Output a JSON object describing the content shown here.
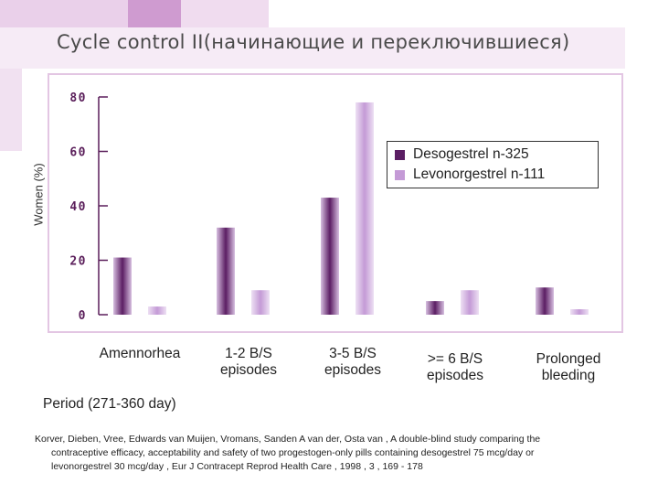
{
  "title": "Cycle control II(начинающие и переключившиеся)",
  "colors": {
    "desogestrel": "#5b1e63",
    "levonorgestrel": "#c49ad6",
    "axis_text": "#5a1e5a",
    "decor_pink": "#e7c6e6",
    "decor_purple": "#cf98cf"
  },
  "chart_data": {
    "type": "bar",
    "title": "Cycle control II(начинающие и переключившиеся)",
    "xlabel": "Period (271-360 day)",
    "ylabel": "Women (%)",
    "ylim": [
      0,
      80
    ],
    "yticks": [
      "0",
      "20",
      "40",
      "60",
      "80"
    ],
    "grid": false,
    "legend_position": "top-right",
    "categories": [
      [
        "Amennorhea"
      ],
      [
        "1-2 B/S",
        "episodes"
      ],
      [
        "3-5 B/S",
        "episodes"
      ],
      [
        ">= 6 B/S",
        "episodes"
      ],
      [
        "Prolonged",
        "bleeding"
      ]
    ],
    "series": [
      {
        "name": "Desogestrel n-325",
        "values": [
          21,
          32,
          43,
          5,
          10
        ]
      },
      {
        "name": "Levonorgestrel n-111",
        "values": [
          3,
          9,
          78,
          9,
          2
        ]
      }
    ]
  },
  "citation": [
    "Korver, Dieben, Vree, Edwards van Muijen, Vromans, Sanden A van der, Osta van , A double-blind study comparing the",
    "contraceptive efficacy, acceptability and safety of two progestogen-only pills containing desogestrel 75 mcg/day or",
    "levonorgestrel 30 mcg/day , Eur J Contracept Reprod Health Care , 1998 , 3 , 169 - 178"
  ]
}
